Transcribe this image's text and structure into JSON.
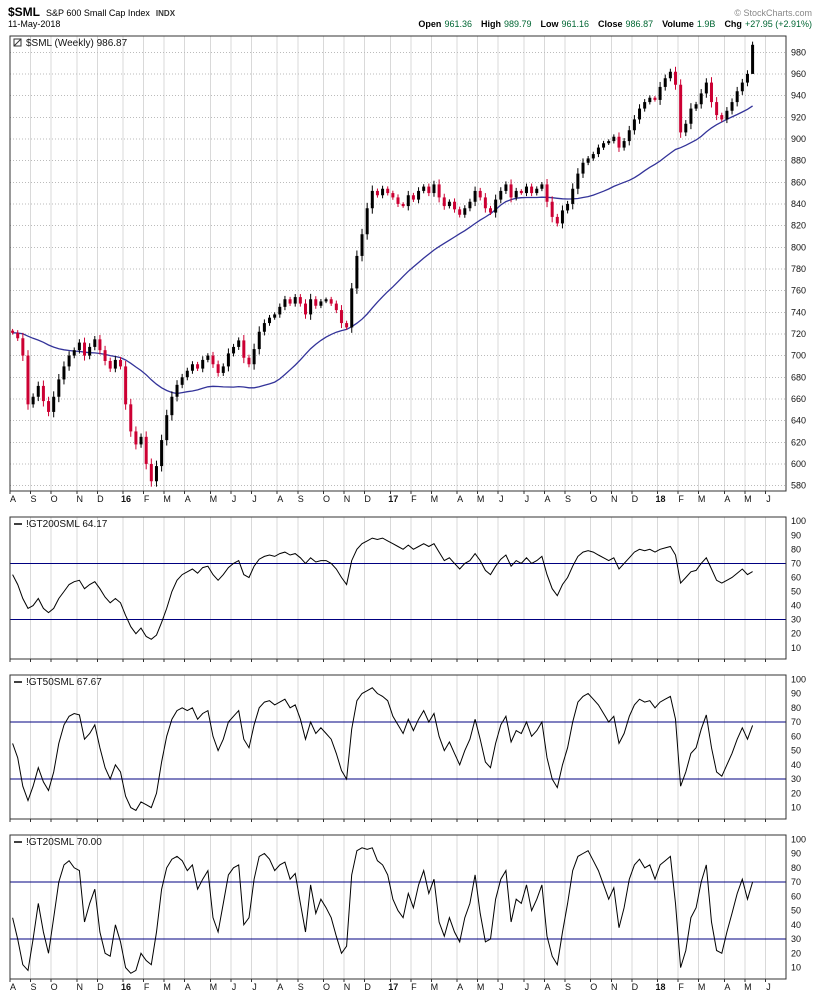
{
  "header": {
    "symbol": "$SML",
    "name": "S&P 600 Small Cap Index",
    "exchange": "INDX",
    "credit": "© StockCharts.com",
    "date": "11-May-2018",
    "quote": [
      {
        "label": "Open",
        "value": "961.36"
      },
      {
        "label": "High",
        "value": "989.79"
      },
      {
        "label": "Low",
        "value": "961.16"
      },
      {
        "label": "Close",
        "value": "986.87"
      },
      {
        "label": "Volume",
        "value": "1.9B"
      },
      {
        "label": "Chg",
        "value": "+27.95 (+2.91%)"
      }
    ]
  },
  "colors": {
    "grid": "#d9d9d9",
    "grid_dotted": "#bbbbbb",
    "border": "#333333",
    "axis_text": "#111111",
    "up": "#000000",
    "down": "#cc0033",
    "ma": "#333399",
    "hline": "#000080",
    "indicator_line": "#000000",
    "quote_value": "#006633"
  },
  "xaxis": {
    "total_weeks": 151,
    "months": [
      {
        "label": "A",
        "week": 0
      },
      {
        "label": "S",
        "week": 4
      },
      {
        "label": "O",
        "week": 8
      },
      {
        "label": "N",
        "week": 13
      },
      {
        "label": "D",
        "week": 17
      },
      {
        "label": "16",
        "week": 22,
        "bold": true
      },
      {
        "label": "F",
        "week": 26
      },
      {
        "label": "M",
        "week": 30
      },
      {
        "label": "A",
        "week": 34
      },
      {
        "label": "M",
        "week": 39
      },
      {
        "label": "J",
        "week": 43
      },
      {
        "label": "J",
        "week": 47
      },
      {
        "label": "A",
        "week": 52
      },
      {
        "label": "S",
        "week": 56
      },
      {
        "label": "O",
        "week": 61
      },
      {
        "label": "N",
        "week": 65
      },
      {
        "label": "D",
        "week": 69
      },
      {
        "label": "17",
        "week": 74,
        "bold": true
      },
      {
        "label": "F",
        "week": 78
      },
      {
        "label": "M",
        "week": 82
      },
      {
        "label": "A",
        "week": 87
      },
      {
        "label": "M",
        "week": 91
      },
      {
        "label": "J",
        "week": 95
      },
      {
        "label": "J",
        "week": 100
      },
      {
        "label": "A",
        "week": 104
      },
      {
        "label": "S",
        "week": 108
      },
      {
        "label": "O",
        "week": 113
      },
      {
        "label": "N",
        "week": 117
      },
      {
        "label": "D",
        "week": 121
      },
      {
        "label": "18",
        "week": 126,
        "bold": true
      },
      {
        "label": "F",
        "week": 130
      },
      {
        "label": "M",
        "week": 134
      },
      {
        "label": "A",
        "week": 139
      },
      {
        "label": "M",
        "week": 143
      },
      {
        "label": "J",
        "week": 147
      }
    ]
  },
  "chart_data": [
    {
      "type": "candlestick",
      "title": "$SML (Weekly) 986.87",
      "xlabel": "",
      "ylabel": "",
      "ylim": [
        575,
        995
      ],
      "yticks": {
        "min": 580,
        "max": 980,
        "step": 20
      },
      "legend_position": "top-left",
      "grid": true,
      "up_color": "#000000",
      "down_color": "#cc0033",
      "overlay": {
        "name": "moving-average",
        "color": "#333399",
        "period_weeks": 30
      },
      "last_ohlc": {
        "open": 961.36,
        "high": 989.79,
        "low": 961.16,
        "close": 986.87
      },
      "closes": [
        721,
        716,
        700,
        655,
        662,
        672,
        658,
        648,
        662,
        678,
        690,
        700,
        705,
        712,
        700,
        708,
        715,
        705,
        695,
        688,
        696,
        690,
        655,
        630,
        618,
        625,
        600,
        584,
        598,
        622,
        645,
        662,
        673,
        680,
        686,
        692,
        688,
        696,
        700,
        692,
        684,
        690,
        702,
        708,
        714,
        698,
        692,
        706,
        722,
        730,
        735,
        738,
        745,
        752,
        748,
        754,
        748,
        738,
        752,
        746,
        750,
        752,
        748,
        742,
        730,
        726,
        762,
        792,
        812,
        836,
        852,
        848,
        854,
        850,
        846,
        840,
        838,
        848,
        844,
        852,
        856,
        850,
        858,
        846,
        838,
        842,
        835,
        830,
        836,
        842,
        852,
        846,
        836,
        832,
        844,
        852,
        858,
        846,
        852,
        850,
        856,
        850,
        854,
        858,
        842,
        828,
        822,
        834,
        840,
        854,
        868,
        878,
        882,
        886,
        892,
        896,
        898,
        902,
        892,
        898,
        908,
        918,
        928,
        934,
        938,
        936,
        948,
        956,
        962,
        950,
        906,
        914,
        928,
        932,
        942,
        952,
        934,
        922,
        918,
        926,
        934,
        944,
        952,
        960,
        986.87
      ]
    },
    {
      "type": "line",
      "title": "!GT200SML 64.17",
      "ylim": [
        2,
        103
      ],
      "yticks": {
        "min": 10,
        "max": 100,
        "step": 10
      },
      "hlines": [
        30,
        70
      ],
      "grid": true,
      "values": [
        62,
        55,
        45,
        38,
        40,
        45,
        38,
        35,
        38,
        45,
        50,
        55,
        57,
        58,
        52,
        55,
        57,
        52,
        46,
        42,
        45,
        42,
        33,
        25,
        20,
        24,
        18,
        16,
        19,
        28,
        38,
        50,
        58,
        62,
        64,
        66,
        63,
        67,
        68,
        62,
        58,
        62,
        67,
        70,
        72,
        62,
        60,
        68,
        73,
        75,
        76,
        75,
        77,
        78,
        76,
        77,
        74,
        70,
        74,
        71,
        72,
        72,
        70,
        66,
        60,
        55,
        72,
        80,
        84,
        86,
        88,
        87,
        88,
        86,
        84,
        82,
        80,
        83,
        80,
        82,
        84,
        82,
        84,
        78,
        72,
        74,
        70,
        66,
        70,
        72,
        77,
        72,
        65,
        62,
        68,
        73,
        76,
        68,
        72,
        70,
        74,
        70,
        72,
        75,
        62,
        52,
        47,
        55,
        60,
        68,
        75,
        78,
        79,
        78,
        76,
        74,
        72,
        74,
        66,
        70,
        74,
        78,
        80,
        79,
        80,
        78,
        80,
        81,
        82,
        76,
        56,
        60,
        64,
        65,
        70,
        74,
        66,
        58,
        56,
        58,
        60,
        63,
        66,
        62,
        64.17
      ]
    },
    {
      "type": "line",
      "title": "!GT50SML 67.67",
      "ylim": [
        2,
        103
      ],
      "yticks": {
        "min": 10,
        "max": 100,
        "step": 10
      },
      "hlines": [
        30,
        70
      ],
      "grid": true,
      "values": [
        55,
        45,
        25,
        15,
        25,
        38,
        28,
        22,
        35,
        55,
        68,
        74,
        76,
        75,
        58,
        62,
        68,
        52,
        38,
        30,
        40,
        35,
        18,
        10,
        8,
        14,
        12,
        10,
        20,
        42,
        60,
        72,
        78,
        80,
        78,
        80,
        72,
        76,
        78,
        60,
        50,
        58,
        70,
        74,
        78,
        58,
        52,
        68,
        80,
        84,
        85,
        82,
        84,
        86,
        80,
        82,
        72,
        58,
        70,
        62,
        66,
        62,
        58,
        48,
        36,
        30,
        65,
        85,
        90,
        92,
        94,
        90,
        88,
        85,
        74,
        68,
        62,
        72,
        64,
        72,
        78,
        70,
        76,
        60,
        50,
        56,
        48,
        40,
        50,
        58,
        72,
        58,
        42,
        38,
        55,
        68,
        74,
        56,
        64,
        62,
        70,
        60,
        64,
        70,
        45,
        30,
        24,
        40,
        52,
        70,
        84,
        88,
        90,
        86,
        82,
        76,
        70,
        74,
        55,
        62,
        74,
        82,
        86,
        84,
        85,
        80,
        84,
        86,
        88,
        72,
        25,
        35,
        48,
        52,
        65,
        75,
        52,
        35,
        32,
        40,
        48,
        58,
        66,
        58,
        67.67
      ]
    },
    {
      "type": "line",
      "title": "!GT20SML 70.00",
      "ylim": [
        2,
        103
      ],
      "yticks": {
        "min": 10,
        "max": 100,
        "step": 10
      },
      "hlines": [
        30,
        70
      ],
      "grid": true,
      "values": [
        45,
        30,
        12,
        8,
        30,
        55,
        35,
        20,
        45,
        70,
        82,
        85,
        80,
        78,
        42,
        55,
        65,
        35,
        20,
        18,
        40,
        28,
        10,
        6,
        8,
        20,
        15,
        12,
        35,
        65,
        80,
        86,
        88,
        85,
        78,
        82,
        65,
        72,
        78,
        45,
        35,
        55,
        75,
        80,
        82,
        40,
        45,
        72,
        88,
        90,
        86,
        78,
        82,
        84,
        72,
        76,
        55,
        35,
        68,
        48,
        58,
        52,
        45,
        32,
        20,
        25,
        75,
        92,
        94,
        93,
        94,
        85,
        82,
        75,
        58,
        50,
        45,
        62,
        52,
        68,
        78,
        62,
        72,
        42,
        32,
        45,
        35,
        28,
        45,
        55,
        75,
        48,
        28,
        30,
        58,
        72,
        78,
        42,
        58,
        55,
        68,
        50,
        58,
        68,
        32,
        18,
        12,
        35,
        55,
        78,
        88,
        90,
        92,
        85,
        78,
        68,
        58,
        66,
        38,
        52,
        72,
        82,
        86,
        80,
        82,
        72,
        82,
        85,
        88,
        55,
        10,
        22,
        45,
        52,
        70,
        82,
        42,
        22,
        20,
        35,
        48,
        62,
        72,
        58,
        70.0
      ]
    }
  ]
}
